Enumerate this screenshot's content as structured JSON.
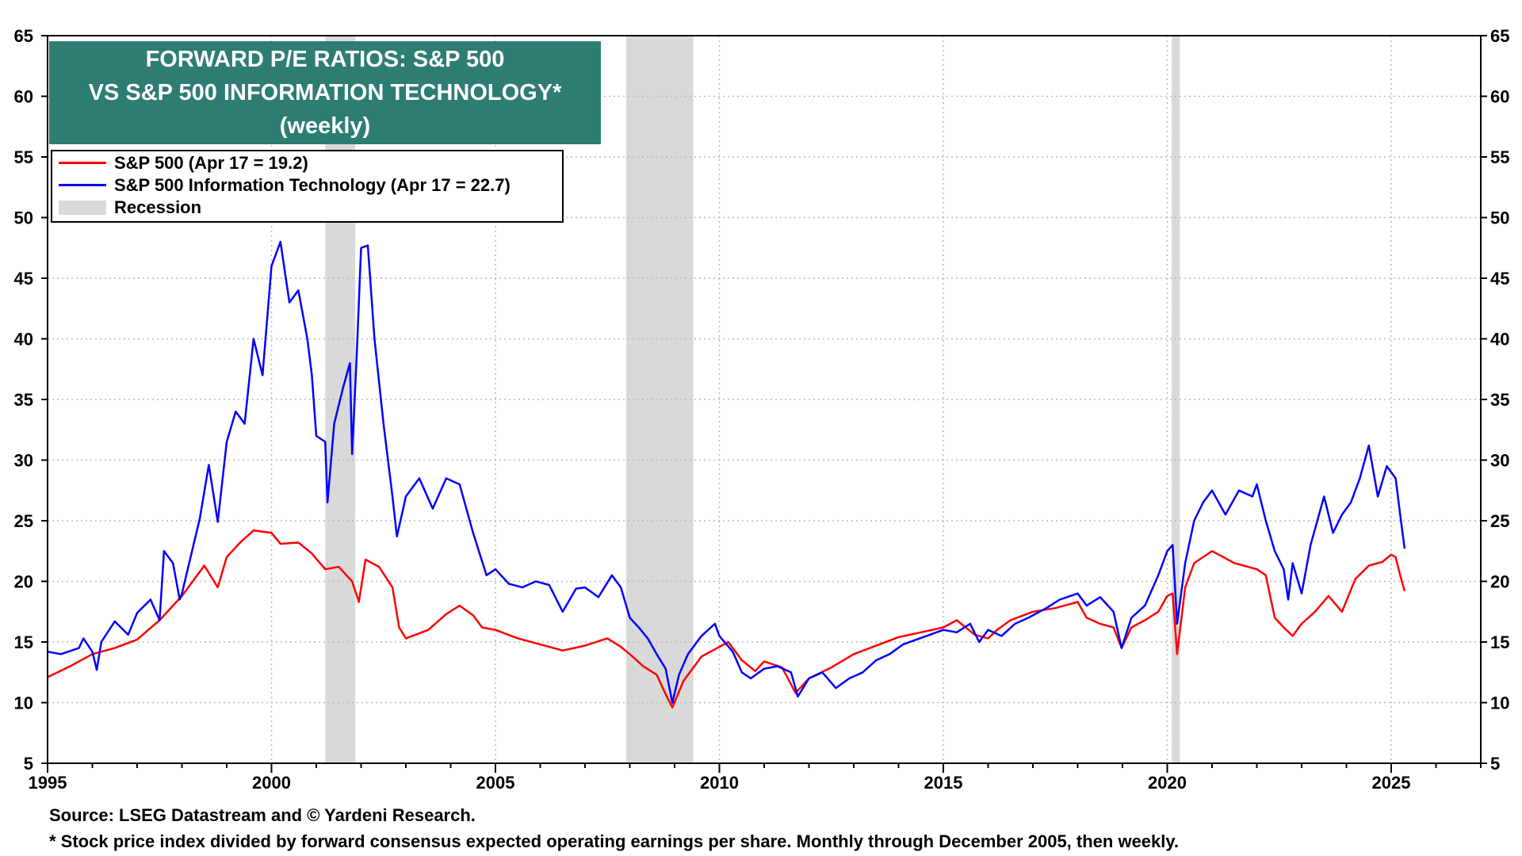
{
  "chart_data": {
    "type": "line",
    "title_lines": [
      "FORWARD P/E RATIOS: S&P 500",
      "VS S&P 500 INFORMATION TECHNOLOGY*",
      "(weekly)"
    ],
    "xlabel": "",
    "ylabel": "",
    "xlim": [
      1995,
      2027
    ],
    "ylim": [
      5,
      65
    ],
    "x_ticks": [
      1995,
      2000,
      2005,
      2010,
      2015,
      2020,
      2025
    ],
    "y_ticks": [
      5,
      10,
      15,
      20,
      25,
      30,
      35,
      40,
      45,
      50,
      55,
      60,
      65
    ],
    "grid": true,
    "legend_position": "top-left",
    "series": [
      {
        "name": "S&P 500 (Apr 17 = 19.2)",
        "color": "#ff0000",
        "points": [
          [
            1995.0,
            12.1
          ],
          [
            1995.5,
            13.0
          ],
          [
            1996.0,
            14.0
          ],
          [
            1996.5,
            14.5
          ],
          [
            1997.0,
            15.2
          ],
          [
            1997.5,
            16.8
          ],
          [
            1997.8,
            18.0
          ],
          [
            1998.0,
            18.8
          ],
          [
            1998.5,
            21.3
          ],
          [
            1998.8,
            19.5
          ],
          [
            1999.0,
            22.0
          ],
          [
            1999.3,
            23.2
          ],
          [
            1999.6,
            24.2
          ],
          [
            2000.0,
            24.0
          ],
          [
            2000.2,
            23.1
          ],
          [
            2000.6,
            23.2
          ],
          [
            2000.9,
            22.3
          ],
          [
            2001.2,
            21.0
          ],
          [
            2001.5,
            21.2
          ],
          [
            2001.8,
            20.0
          ],
          [
            2001.95,
            18.3
          ],
          [
            2002.1,
            21.8
          ],
          [
            2002.4,
            21.2
          ],
          [
            2002.7,
            19.5
          ],
          [
            2002.85,
            16.2
          ],
          [
            2003.0,
            15.3
          ],
          [
            2003.5,
            16.0
          ],
          [
            2003.9,
            17.3
          ],
          [
            2004.2,
            18.0
          ],
          [
            2004.5,
            17.2
          ],
          [
            2004.7,
            16.2
          ],
          [
            2005.0,
            16.0
          ],
          [
            2005.5,
            15.3
          ],
          [
            2006.0,
            14.8
          ],
          [
            2006.5,
            14.3
          ],
          [
            2007.0,
            14.7
          ],
          [
            2007.5,
            15.3
          ],
          [
            2007.8,
            14.6
          ],
          [
            2008.0,
            14.0
          ],
          [
            2008.3,
            13.0
          ],
          [
            2008.6,
            12.3
          ],
          [
            2008.8,
            10.7
          ],
          [
            2008.95,
            9.6
          ],
          [
            2009.2,
            11.8
          ],
          [
            2009.6,
            13.8
          ],
          [
            2009.9,
            14.4
          ],
          [
            2010.2,
            15.0
          ],
          [
            2010.5,
            13.5
          ],
          [
            2010.8,
            12.6
          ],
          [
            2011.0,
            13.4
          ],
          [
            2011.4,
            12.9
          ],
          [
            2011.7,
            10.8
          ],
          [
            2012.0,
            12.0
          ],
          [
            2012.5,
            12.9
          ],
          [
            2013.0,
            14.0
          ],
          [
            2013.5,
            14.7
          ],
          [
            2014.0,
            15.4
          ],
          [
            2014.5,
            15.8
          ],
          [
            2015.0,
            16.2
          ],
          [
            2015.3,
            16.8
          ],
          [
            2015.7,
            15.6
          ],
          [
            2016.0,
            15.3
          ],
          [
            2016.2,
            16.0
          ],
          [
            2016.5,
            16.8
          ],
          [
            2017.0,
            17.5
          ],
          [
            2017.5,
            17.8
          ],
          [
            2018.0,
            18.3
          ],
          [
            2018.2,
            17.0
          ],
          [
            2018.5,
            16.5
          ],
          [
            2018.8,
            16.2
          ],
          [
            2018.98,
            14.5
          ],
          [
            2019.2,
            16.2
          ],
          [
            2019.5,
            16.8
          ],
          [
            2019.8,
            17.5
          ],
          [
            2020.0,
            18.8
          ],
          [
            2020.12,
            19.0
          ],
          [
            2020.22,
            14.0
          ],
          [
            2020.4,
            19.5
          ],
          [
            2020.6,
            21.5
          ],
          [
            2020.8,
            22.0
          ],
          [
            2021.0,
            22.5
          ],
          [
            2021.5,
            21.5
          ],
          [
            2022.0,
            21.0
          ],
          [
            2022.2,
            20.5
          ],
          [
            2022.4,
            17.0
          ],
          [
            2022.6,
            16.2
          ],
          [
            2022.8,
            15.5
          ],
          [
            2023.0,
            16.5
          ],
          [
            2023.3,
            17.5
          ],
          [
            2023.6,
            18.8
          ],
          [
            2023.9,
            17.5
          ],
          [
            2024.2,
            20.2
          ],
          [
            2024.5,
            21.3
          ],
          [
            2024.8,
            21.6
          ],
          [
            2025.0,
            22.2
          ],
          [
            2025.1,
            22.0
          ],
          [
            2025.2,
            20.5
          ],
          [
            2025.3,
            19.2
          ]
        ]
      },
      {
        "name": "S&P 500 Information Technology (Apr 17 = 22.7)",
        "color": "#0000ff",
        "points": [
          [
            1995.0,
            14.2
          ],
          [
            1995.3,
            14.0
          ],
          [
            1995.7,
            14.5
          ],
          [
            1995.8,
            15.3
          ],
          [
            1996.0,
            14.2
          ],
          [
            1996.1,
            12.7
          ],
          [
            1996.2,
            15.0
          ],
          [
            1996.5,
            16.7
          ],
          [
            1996.8,
            15.6
          ],
          [
            1997.0,
            17.4
          ],
          [
            1997.3,
            18.5
          ],
          [
            1997.5,
            16.8
          ],
          [
            1997.6,
            22.5
          ],
          [
            1997.8,
            21.5
          ],
          [
            1997.95,
            18.5
          ],
          [
            1998.0,
            19.0
          ],
          [
            1998.4,
            25.2
          ],
          [
            1998.6,
            29.6
          ],
          [
            1998.8,
            24.9
          ],
          [
            1999.0,
            31.5
          ],
          [
            1999.2,
            34.0
          ],
          [
            1999.4,
            33.0
          ],
          [
            1999.6,
            40.0
          ],
          [
            1999.8,
            37.0
          ],
          [
            2000.0,
            46.0
          ],
          [
            2000.2,
            48.0
          ],
          [
            2000.4,
            43.0
          ],
          [
            2000.6,
            44.0
          ],
          [
            2000.8,
            40.0
          ],
          [
            2000.9,
            37.0
          ],
          [
            2001.0,
            32.0
          ],
          [
            2001.2,
            31.5
          ],
          [
            2001.25,
            26.5
          ],
          [
            2001.4,
            33.0
          ],
          [
            2001.6,
            36.0
          ],
          [
            2001.75,
            38.0
          ],
          [
            2001.8,
            30.5
          ],
          [
            2001.9,
            38.5
          ],
          [
            2002.0,
            47.5
          ],
          [
            2002.15,
            47.7
          ],
          [
            2002.3,
            40.0
          ],
          [
            2002.5,
            33.0
          ],
          [
            2002.7,
            27.0
          ],
          [
            2002.8,
            23.7
          ],
          [
            2003.0,
            27.0
          ],
          [
            2003.3,
            28.5
          ],
          [
            2003.6,
            26.0
          ],
          [
            2003.9,
            28.5
          ],
          [
            2004.2,
            28.0
          ],
          [
            2004.5,
            24.0
          ],
          [
            2004.8,
            20.5
          ],
          [
            2005.0,
            21.0
          ],
          [
            2005.3,
            19.8
          ],
          [
            2005.6,
            19.5
          ],
          [
            2005.9,
            20.0
          ],
          [
            2006.2,
            19.7
          ],
          [
            2006.5,
            17.5
          ],
          [
            2006.8,
            19.4
          ],
          [
            2007.0,
            19.5
          ],
          [
            2007.3,
            18.7
          ],
          [
            2007.6,
            20.5
          ],
          [
            2007.8,
            19.5
          ],
          [
            2008.0,
            17.0
          ],
          [
            2008.2,
            16.2
          ],
          [
            2008.4,
            15.3
          ],
          [
            2008.6,
            14.0
          ],
          [
            2008.8,
            12.8
          ],
          [
            2008.95,
            10.0
          ],
          [
            2009.1,
            12.3
          ],
          [
            2009.3,
            14.0
          ],
          [
            2009.6,
            15.5
          ],
          [
            2009.9,
            16.5
          ],
          [
            2010.0,
            15.5
          ],
          [
            2010.3,
            14.2
          ],
          [
            2010.5,
            12.5
          ],
          [
            2010.7,
            12.0
          ],
          [
            2011.0,
            12.8
          ],
          [
            2011.3,
            13.0
          ],
          [
            2011.6,
            12.5
          ],
          [
            2011.75,
            10.5
          ],
          [
            2012.0,
            12.0
          ],
          [
            2012.3,
            12.5
          ],
          [
            2012.6,
            11.2
          ],
          [
            2012.9,
            12.0
          ],
          [
            2013.2,
            12.5
          ],
          [
            2013.5,
            13.5
          ],
          [
            2013.8,
            14.0
          ],
          [
            2014.1,
            14.8
          ],
          [
            2014.4,
            15.2
          ],
          [
            2014.7,
            15.6
          ],
          [
            2015.0,
            16.0
          ],
          [
            2015.3,
            15.8
          ],
          [
            2015.6,
            16.5
          ],
          [
            2015.8,
            15.0
          ],
          [
            2016.0,
            16.0
          ],
          [
            2016.3,
            15.5
          ],
          [
            2016.6,
            16.5
          ],
          [
            2016.9,
            17.0
          ],
          [
            2017.3,
            17.8
          ],
          [
            2017.6,
            18.5
          ],
          [
            2018.0,
            19.0
          ],
          [
            2018.2,
            18.0
          ],
          [
            2018.5,
            18.7
          ],
          [
            2018.8,
            17.5
          ],
          [
            2018.98,
            14.5
          ],
          [
            2019.2,
            17.0
          ],
          [
            2019.5,
            18.0
          ],
          [
            2019.8,
            20.5
          ],
          [
            2020.0,
            22.5
          ],
          [
            2020.12,
            23.0
          ],
          [
            2020.22,
            16.5
          ],
          [
            2020.4,
            21.5
          ],
          [
            2020.6,
            25.0
          ],
          [
            2020.8,
            26.5
          ],
          [
            2021.0,
            27.5
          ],
          [
            2021.3,
            25.5
          ],
          [
            2021.6,
            27.5
          ],
          [
            2021.9,
            27.0
          ],
          [
            2022.0,
            28.0
          ],
          [
            2022.2,
            25.0
          ],
          [
            2022.4,
            22.5
          ],
          [
            2022.6,
            21.0
          ],
          [
            2022.7,
            18.5
          ],
          [
            2022.8,
            21.5
          ],
          [
            2023.0,
            19.0
          ],
          [
            2023.2,
            23.0
          ],
          [
            2023.5,
            27.0
          ],
          [
            2023.7,
            24.0
          ],
          [
            2023.9,
            25.5
          ],
          [
            2024.1,
            26.5
          ],
          [
            2024.3,
            28.5
          ],
          [
            2024.5,
            31.2
          ],
          [
            2024.7,
            27.0
          ],
          [
            2024.9,
            29.5
          ],
          [
            2025.0,
            29.0
          ],
          [
            2025.1,
            28.5
          ],
          [
            2025.2,
            25.5
          ],
          [
            2025.3,
            22.7
          ]
        ]
      }
    ],
    "recessions": [
      [
        2001.2,
        2001.87
      ],
      [
        2007.92,
        2009.42
      ],
      [
        2020.1,
        2020.28
      ]
    ],
    "legend_recession_label": "Recession",
    "recession_color": "#d9d9d9",
    "title_bg_color": "#2e7d72"
  },
  "footnotes": {
    "source": "Source: LSEG Datastream and © Yardeni Research.",
    "note": "* Stock price index divided by forward consensus expected operating earnings per share. Monthly through December 2005, then weekly."
  }
}
